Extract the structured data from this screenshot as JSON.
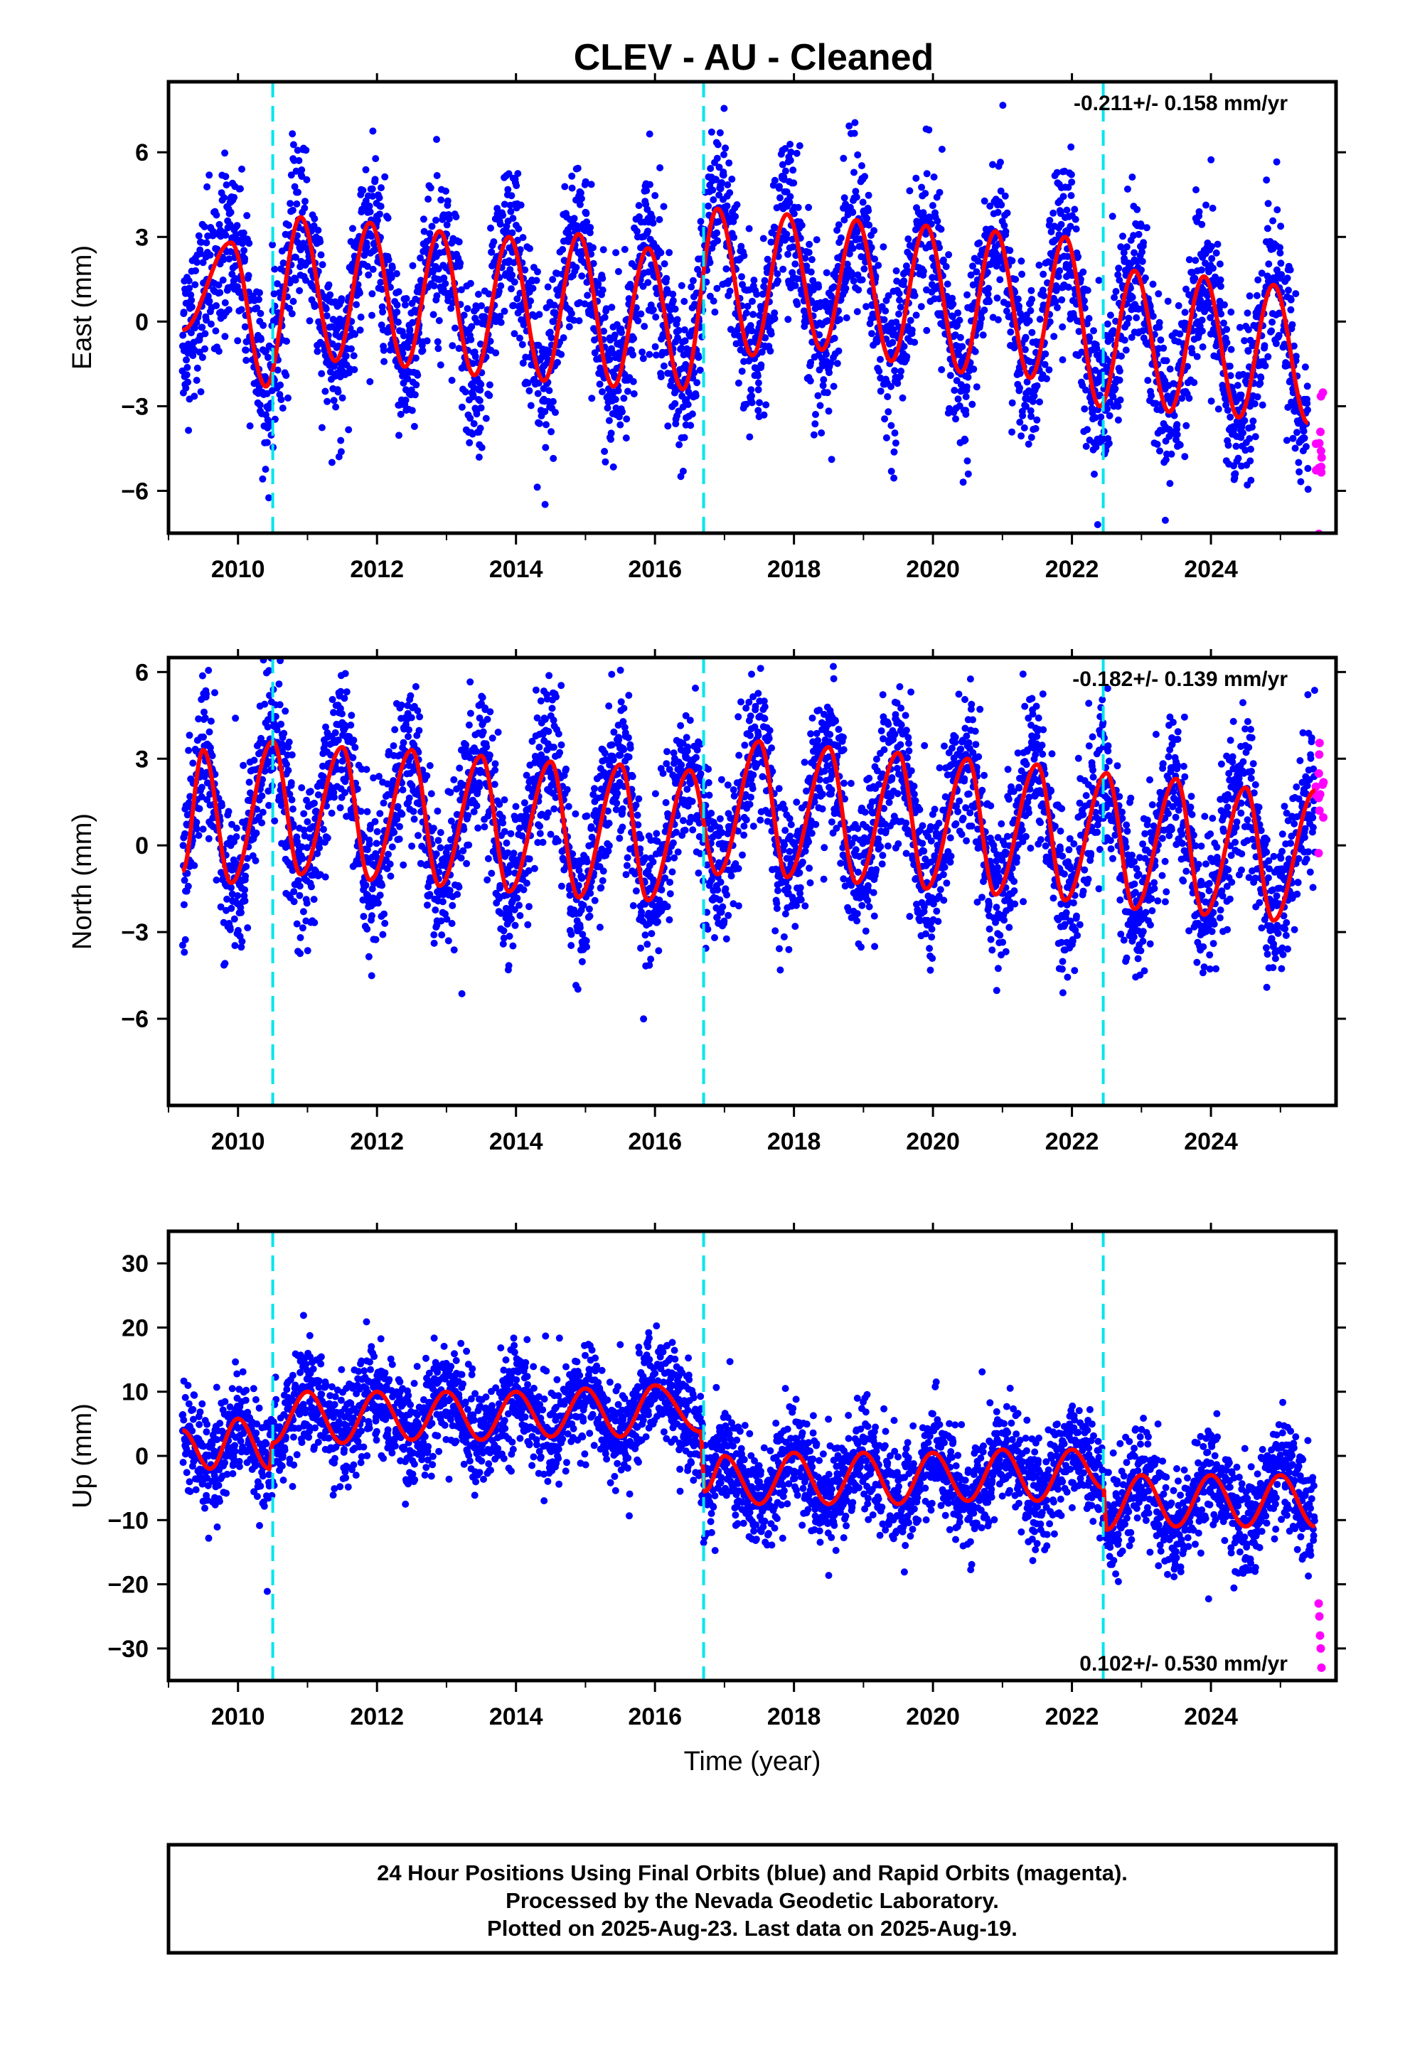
{
  "title": "CLEV  - AU - Cleaned",
  "xlabel": "Time (year)",
  "footer": {
    "lines": [
      "24 Hour Positions Using Final Orbits (blue) and Rapid Orbits (magenta).",
      "Processed by the Nevada Geodetic Laboratory.",
      "Plotted on 2025-Aug-23. Last data on 2025-Aug-19."
    ]
  },
  "colors": {
    "final_orbits": "#0000ff",
    "rapid_orbits": "#ff00ff",
    "model_fit": "#ff0000",
    "equipment_change": "#00e5ee"
  },
  "chart_data": [
    {
      "type": "scatter",
      "ylabel": "East (mm)",
      "rate": "-0.211+/- 0.158 mm/yr",
      "xlim": [
        2009.0,
        2025.8
      ],
      "ylim": [
        -7.5,
        8.5
      ],
      "xticks": [
        "2010",
        "2012",
        "2014",
        "2016",
        "2018",
        "2020",
        "2022",
        "2024"
      ],
      "yticks": [
        "6",
        "3",
        "0",
        "-3",
        "-6"
      ],
      "step_epochs": [
        2010.5,
        2016.7,
        2022.45
      ],
      "model": {
        "name": "fit",
        "amplitude": 2.8,
        "phase_year": 0.9,
        "offset": 0.5,
        "trend_mm_per_yr": -0.211,
        "sample": [
          [
            2009.2,
            -0.3
          ],
          [
            2009.9,
            2.8
          ],
          [
            2010.4,
            -2.3
          ],
          [
            2010.9,
            3.7
          ],
          [
            2011.4,
            -1.4
          ],
          [
            2011.9,
            3.5
          ],
          [
            2012.4,
            -1.6
          ],
          [
            2012.9,
            3.2
          ],
          [
            2013.4,
            -1.9
          ],
          [
            2013.9,
            3.0
          ],
          [
            2014.4,
            -2.1
          ],
          [
            2014.9,
            3.1
          ],
          [
            2015.4,
            -2.3
          ],
          [
            2015.9,
            2.6
          ],
          [
            2016.4,
            -2.4
          ],
          [
            2016.9,
            4.0
          ],
          [
            2017.4,
            -1.2
          ],
          [
            2017.9,
            3.8
          ],
          [
            2018.4,
            -1.0
          ],
          [
            2018.9,
            3.6
          ],
          [
            2019.4,
            -1.4
          ],
          [
            2019.9,
            3.4
          ],
          [
            2020.4,
            -1.8
          ],
          [
            2020.9,
            3.2
          ],
          [
            2021.4,
            -2.0
          ],
          [
            2021.9,
            3.0
          ],
          [
            2022.4,
            -3.0
          ],
          [
            2022.9,
            1.8
          ],
          [
            2023.4,
            -3.2
          ],
          [
            2023.9,
            1.6
          ],
          [
            2024.4,
            -3.4
          ],
          [
            2024.9,
            1.3
          ],
          [
            2025.4,
            -3.6
          ]
        ]
      },
      "scatter_sigma": 1.4
    },
    {
      "type": "scatter",
      "ylabel": "North (mm)",
      "rate": "-0.182+/- 0.139 mm/yr",
      "xlim": [
        2009.0,
        2025.8
      ],
      "ylim": [
        -9.0,
        6.5
      ],
      "xticks": [
        "2010",
        "2012",
        "2014",
        "2016",
        "2018",
        "2020",
        "2022",
        "2024"
      ],
      "yticks": [
        "6",
        "3",
        "0",
        "-3",
        "-6"
      ],
      "step_epochs": [
        2010.5,
        2016.7,
        2022.45
      ],
      "model": {
        "name": "fit",
        "amplitude": 2.3,
        "phase_year": 0.5,
        "offset": 0.6,
        "trend_mm_per_yr": -0.182,
        "sample": [
          [
            2009.2,
            -0.9
          ],
          [
            2009.5,
            3.3
          ],
          [
            2009.9,
            -1.3
          ],
          [
            2010.5,
            3.6
          ],
          [
            2010.9,
            -1.0
          ],
          [
            2011.5,
            3.4
          ],
          [
            2011.9,
            -1.2
          ],
          [
            2012.5,
            3.3
          ],
          [
            2012.9,
            -1.4
          ],
          [
            2013.5,
            3.1
          ],
          [
            2013.9,
            -1.6
          ],
          [
            2014.5,
            2.9
          ],
          [
            2014.9,
            -1.8
          ],
          [
            2015.5,
            2.8
          ],
          [
            2015.9,
            -1.9
          ],
          [
            2016.5,
            2.6
          ],
          [
            2016.9,
            -1.0
          ],
          [
            2017.5,
            3.6
          ],
          [
            2017.9,
            -1.1
          ],
          [
            2018.5,
            3.4
          ],
          [
            2018.9,
            -1.3
          ],
          [
            2019.5,
            3.2
          ],
          [
            2019.9,
            -1.5
          ],
          [
            2020.5,
            3.0
          ],
          [
            2020.9,
            -1.7
          ],
          [
            2021.5,
            2.8
          ],
          [
            2021.9,
            -1.9
          ],
          [
            2022.5,
            2.5
          ],
          [
            2022.9,
            -2.2
          ],
          [
            2023.5,
            2.3
          ],
          [
            2023.9,
            -2.4
          ],
          [
            2024.5,
            2.0
          ],
          [
            2024.9,
            -2.6
          ],
          [
            2025.5,
            1.9
          ]
        ]
      },
      "scatter_sigma": 1.3
    },
    {
      "type": "scatter",
      "ylabel": "Up (mm)",
      "rate": "0.102+/- 0.530 mm/yr",
      "xlim": [
        2009.0,
        2025.8
      ],
      "ylim": [
        -35,
        35
      ],
      "xticks": [
        "2010",
        "2012",
        "2014",
        "2016",
        "2018",
        "2020",
        "2022",
        "2024"
      ],
      "yticks": [
        "30",
        "20",
        "10",
        "0",
        "-10",
        "-20",
        "-30"
      ],
      "step_epochs": [
        2010.5,
        2016.7,
        2022.45
      ],
      "model": {
        "name": "fit",
        "amplitude": 4.2,
        "phase_year": 0.0,
        "sample": [
          [
            2009.2,
            4.0
          ],
          [
            2009.6,
            -2.0
          ],
          [
            2010.0,
            5.8
          ],
          [
            2010.45,
            -2.0
          ],
          [
            2010.5,
            2.0
          ],
          [
            2011.0,
            10.0
          ],
          [
            2011.5,
            2.0
          ],
          [
            2012.0,
            10.0
          ],
          [
            2012.5,
            2.5
          ],
          [
            2013.0,
            10.0
          ],
          [
            2013.5,
            2.5
          ],
          [
            2014.0,
            10.0
          ],
          [
            2014.5,
            3.0
          ],
          [
            2015.0,
            10.5
          ],
          [
            2015.5,
            3.0
          ],
          [
            2016.0,
            11.0
          ],
          [
            2016.65,
            3.8
          ],
          [
            2016.72,
            -5.5
          ],
          [
            2017.0,
            0.0
          ],
          [
            2017.5,
            -7.5
          ],
          [
            2018.0,
            0.5
          ],
          [
            2018.5,
            -7.5
          ],
          [
            2019.0,
            0.5
          ],
          [
            2019.5,
            -7.5
          ],
          [
            2020.0,
            0.5
          ],
          [
            2020.5,
            -7.0
          ],
          [
            2021.0,
            1.0
          ],
          [
            2021.5,
            -7.0
          ],
          [
            2022.0,
            1.0
          ],
          [
            2022.45,
            -5.0
          ],
          [
            2022.5,
            -11.5
          ],
          [
            2023.0,
            -3.0
          ],
          [
            2023.5,
            -11.0
          ],
          [
            2024.0,
            -3.0
          ],
          [
            2024.5,
            -11.0
          ],
          [
            2025.0,
            -3.0
          ],
          [
            2025.5,
            -11.0
          ]
        ]
      },
      "rapid_orbit_points": [
        [
          2025.55,
          -23
        ],
        [
          2025.56,
          -25
        ],
        [
          2025.57,
          -28
        ],
        [
          2025.58,
          -30
        ],
        [
          2025.59,
          -33
        ]
      ],
      "scatter_sigma": 4.0
    }
  ]
}
